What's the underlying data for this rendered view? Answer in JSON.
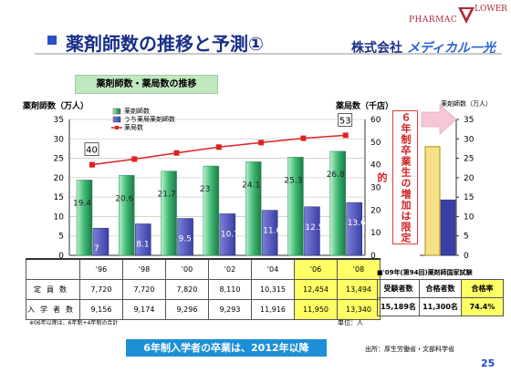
{
  "header": {
    "title": "薬剤師数の推移と予測①",
    "company_prefix": "株式会社",
    "company_brand": "メディカル一光",
    "logo_line1": "PHARMAC",
    "logo_line2": "LOWER"
  },
  "subtitle": "薬剤師数・薬局数の推移",
  "axis_titles": {
    "left": "薬剤師数（万人）",
    "right": "薬局数（千店）",
    "far_right": "薬剤師数（万人）"
  },
  "chart_data": {
    "type": "bar",
    "categories": [
      "'96",
      "'98",
      "'00",
      "'02",
      "'04",
      "'06",
      "'08"
    ],
    "series": [
      {
        "name": "薬剤師数",
        "type": "bar",
        "axis": "left",
        "color": "#3db872",
        "values": [
          19.4,
          20.6,
          21.7,
          23.0,
          24.1,
          25.3,
          26.8
        ]
      },
      {
        "name": "うち薬局薬剤師数",
        "type": "bar",
        "axis": "left",
        "color": "#3a3fa8",
        "values": [
          7.0,
          8.1,
          9.5,
          10.7,
          11.6,
          12.5,
          13.6
        ]
      },
      {
        "name": "薬局数",
        "type": "line",
        "axis": "right",
        "color": "#e02020",
        "values": [
          40,
          42.5,
          45.2,
          47.8,
          49.8,
          51.7,
          53
        ]
      }
    ],
    "line_labels": [
      {
        "index": 0,
        "text": "40"
      },
      {
        "index": 6,
        "text": "53"
      }
    ],
    "y_left": {
      "min": 0,
      "max": 35,
      "ticks": [
        0,
        5,
        10,
        15,
        20,
        25,
        30,
        35
      ]
    },
    "y_right": {
      "min": 0,
      "max": 60,
      "ticks": [
        0,
        10,
        20,
        30,
        40,
        50,
        60
      ]
    },
    "highlight_categories": [
      "'06",
      "'08"
    ],
    "projection": {
      "y_axis": {
        "min": 0,
        "max": 35,
        "ticks": [
          0,
          5,
          10,
          15,
          20,
          25,
          30,
          35
        ]
      },
      "bars": [
        {
          "color": "#f6e08a",
          "value": 28
        },
        {
          "color": "#3a3fa8",
          "value": 14.3
        }
      ]
    }
  },
  "note_vertical": "６年制卒業生の増加は限定的",
  "table": {
    "header": [
      "'96",
      "'98",
      "'00",
      "'02",
      "'04",
      "'06",
      "'08"
    ],
    "rows": [
      {
        "label": "定員数",
        "values": [
          "7,720",
          "7,720",
          "7,820",
          "8,110",
          "10,315",
          "12,454",
          "13,494"
        ]
      },
      {
        "label": "入学者数",
        "values": [
          "9,156",
          "9,174",
          "9,296",
          "9,293",
          "11,916",
          "11,950",
          "13,340"
        ]
      }
    ]
  },
  "exam": {
    "title": "■'09年(第94回)薬剤師国家試験",
    "headers": [
      "受験者数",
      "合格者数",
      "合格率"
    ],
    "values": [
      "15,189名",
      "11,300名",
      "74.4%"
    ]
  },
  "footnote": "※06年以降は、6年制+4年制の合計",
  "unit_note": "単位：人",
  "banner": "6年制入学者の卒業は、2012年以降",
  "source": "出所：厚生労働省・文部科学省",
  "page_number": "25"
}
